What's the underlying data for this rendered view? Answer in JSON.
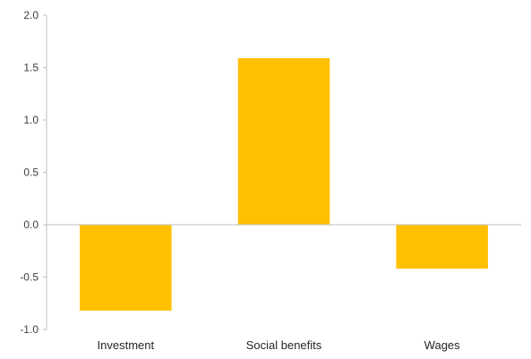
{
  "chart_data": {
    "type": "bar",
    "categories": [
      "Investment",
      "Social benefits",
      "Wages"
    ],
    "values": [
      -0.82,
      1.59,
      -0.42
    ],
    "title": "",
    "xlabel": "",
    "ylabel": "",
    "ylim": [
      -1.0,
      2.0
    ],
    "yticks": [
      2.0,
      1.5,
      1.0,
      0.5,
      0.0,
      -0.5,
      -1.0
    ],
    "ytick_labels": [
      "2.0",
      "1.5",
      "1.0",
      "0.5",
      "0.0",
      "-0.5",
      "-1.0"
    ],
    "grid": false,
    "legend": "none",
    "colors": {
      "bar": "#FFC000",
      "axis": "#BFBFBF",
      "text": "#404040"
    }
  }
}
